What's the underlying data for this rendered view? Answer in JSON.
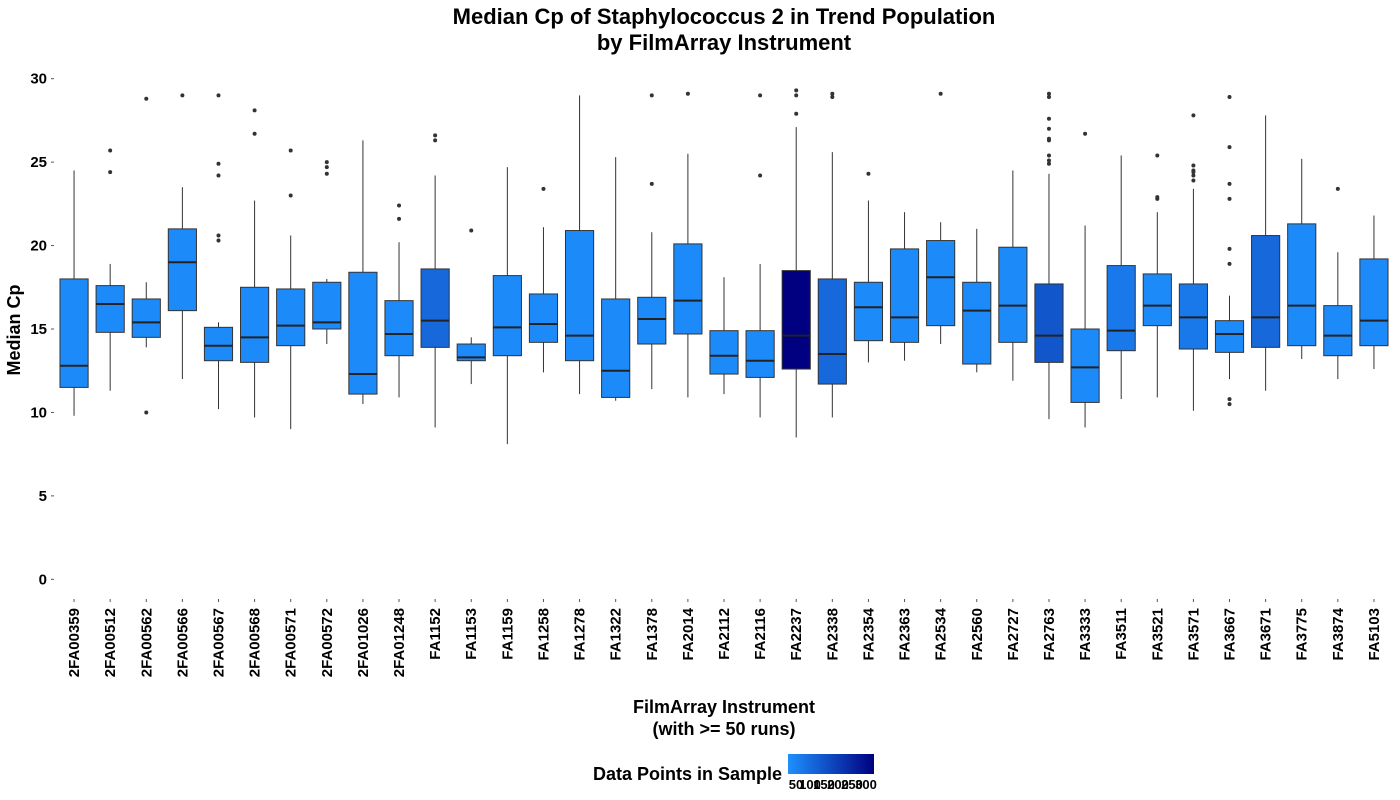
{
  "chart_data": {
    "type": "boxplot",
    "title": "Median Cp of Staphylococcus 2 in Trend Population",
    "subtitle": "by FilmArray Instrument",
    "xlabel": "FilmArray Instrument",
    "xlabel_sub": "(with >= 50 runs)",
    "ylabel": "Median Cp",
    "ylim": [
      -1,
      31
    ],
    "yticks": [
      0,
      5,
      10,
      15,
      20,
      25,
      30
    ],
    "grid": false,
    "legend": {
      "title": "Data Points in Sample",
      "placement": "bottom",
      "tick_labels": [
        "50",
        "100",
        "150",
        "200",
        "250",
        "300"
      ],
      "color_low": "#1E90FF",
      "color_high": "#000080"
    },
    "categories": [
      "2FA00359",
      "2FA00512",
      "2FA00562",
      "2FA00566",
      "2FA00567",
      "2FA00568",
      "2FA00571",
      "2FA00572",
      "2FA01026",
      "2FA01248",
      "FA1152",
      "FA1153",
      "FA1159",
      "FA1258",
      "FA1278",
      "FA1322",
      "FA1378",
      "FA2014",
      "FA2112",
      "FA2116",
      "FA2237",
      "FA2338",
      "FA2354",
      "FA2363",
      "FA2534",
      "FA2560",
      "FA2727",
      "FA2763",
      "FA3333",
      "FA3511",
      "FA3521",
      "FA3571",
      "FA3667",
      "FA3671",
      "FA3775",
      "FA3874",
      "FA5103"
    ],
    "boxes": [
      {
        "lower": 9.8,
        "q1": 11.5,
        "median": 12.8,
        "q3": 18.0,
        "upper": 24.5,
        "outliers": [],
        "n": 60
      },
      {
        "lower": 11.3,
        "q1": 14.8,
        "median": 16.5,
        "q3": 17.6,
        "upper": 18.9,
        "outliers": [
          24.4,
          25.7
        ],
        "n": 60
      },
      {
        "lower": 13.9,
        "q1": 14.5,
        "median": 15.4,
        "q3": 16.8,
        "upper": 17.8,
        "outliers": [
          10.0,
          28.8
        ],
        "n": 60
      },
      {
        "lower": 12.0,
        "q1": 16.1,
        "median": 19.0,
        "q3": 21.0,
        "upper": 23.5,
        "outliers": [
          29.0
        ],
        "n": 60
      },
      {
        "lower": 10.2,
        "q1": 13.1,
        "median": 14.0,
        "q3": 15.1,
        "upper": 15.4,
        "outliers": [
          20.3,
          20.6,
          24.2,
          24.9,
          29.0
        ],
        "n": 60
      },
      {
        "lower": 9.7,
        "q1": 13.0,
        "median": 14.5,
        "q3": 17.5,
        "upper": 22.7,
        "outliers": [
          26.7,
          28.1
        ],
        "n": 60
      },
      {
        "lower": 9.0,
        "q1": 14.0,
        "median": 15.2,
        "q3": 17.4,
        "upper": 20.6,
        "outliers": [
          23.0,
          25.7
        ],
        "n": 60
      },
      {
        "lower": 14.1,
        "q1": 15.0,
        "median": 15.4,
        "q3": 17.8,
        "upper": 18.0,
        "outliers": [
          24.3,
          24.7,
          25.0
        ],
        "n": 60
      },
      {
        "lower": 10.5,
        "q1": 11.1,
        "median": 12.3,
        "q3": 18.4,
        "upper": 26.3,
        "outliers": [],
        "n": 60
      },
      {
        "lower": 10.9,
        "q1": 13.4,
        "median": 14.7,
        "q3": 16.7,
        "upper": 20.2,
        "outliers": [
          21.6,
          22.4
        ],
        "n": 60
      },
      {
        "lower": 9.1,
        "q1": 13.9,
        "median": 15.5,
        "q3": 18.6,
        "upper": 24.2,
        "outliers": [
          26.3,
          26.6
        ],
        "n": 120
      },
      {
        "lower": 11.7,
        "q1": 13.1,
        "median": 13.3,
        "q3": 14.1,
        "upper": 14.5,
        "outliers": [
          20.9
        ],
        "n": 60
      },
      {
        "lower": 8.1,
        "q1": 13.4,
        "median": 15.1,
        "q3": 18.2,
        "upper": 24.7,
        "outliers": [],
        "n": 60
      },
      {
        "lower": 12.4,
        "q1": 14.2,
        "median": 15.3,
        "q3": 17.1,
        "upper": 21.1,
        "outliers": [
          23.4
        ],
        "n": 60
      },
      {
        "lower": 11.1,
        "q1": 13.1,
        "median": 14.6,
        "q3": 20.9,
        "upper": 29.0,
        "outliers": [],
        "n": 60
      },
      {
        "lower": 10.7,
        "q1": 10.9,
        "median": 12.5,
        "q3": 16.8,
        "upper": 25.3,
        "outliers": [],
        "n": 60
      },
      {
        "lower": 11.4,
        "q1": 14.1,
        "median": 15.6,
        "q3": 16.9,
        "upper": 20.8,
        "outliers": [
          23.7,
          29.0
        ],
        "n": 60
      },
      {
        "lower": 10.9,
        "q1": 14.7,
        "median": 16.7,
        "q3": 20.1,
        "upper": 25.5,
        "outliers": [
          29.1
        ],
        "n": 60
      },
      {
        "lower": 11.1,
        "q1": 12.3,
        "median": 13.4,
        "q3": 14.9,
        "upper": 18.1,
        "outliers": [],
        "n": 60
      },
      {
        "lower": 9.7,
        "q1": 12.1,
        "median": 13.1,
        "q3": 14.9,
        "upper": 18.9,
        "outliers": [
          24.2,
          29.0
        ],
        "n": 60
      },
      {
        "lower": 8.5,
        "q1": 12.6,
        "median": 14.6,
        "q3": 18.5,
        "upper": 27.1,
        "outliers": [
          27.9,
          29.0,
          29.3
        ],
        "n": 300
      },
      {
        "lower": 9.7,
        "q1": 11.7,
        "median": 13.5,
        "q3": 18.0,
        "upper": 25.6,
        "outliers": [
          28.9,
          29.1
        ],
        "n": 120
      },
      {
        "lower": 13.0,
        "q1": 14.3,
        "median": 16.3,
        "q3": 17.8,
        "upper": 22.7,
        "outliers": [
          24.3
        ],
        "n": 60
      },
      {
        "lower": 13.1,
        "q1": 14.2,
        "median": 15.7,
        "q3": 19.8,
        "upper": 22.0,
        "outliers": [],
        "n": 60
      },
      {
        "lower": 14.1,
        "q1": 15.2,
        "median": 18.1,
        "q3": 20.3,
        "upper": 21.4,
        "outliers": [
          29.1
        ],
        "n": 60
      },
      {
        "lower": 12.4,
        "q1": 12.9,
        "median": 16.1,
        "q3": 17.8,
        "upper": 21.0,
        "outliers": [],
        "n": 60
      },
      {
        "lower": 11.9,
        "q1": 14.2,
        "median": 16.4,
        "q3": 19.9,
        "upper": 24.5,
        "outliers": [],
        "n": 60
      },
      {
        "lower": 9.6,
        "q1": 13.0,
        "median": 14.6,
        "q3": 17.7,
        "upper": 24.3,
        "outliers": [
          24.9,
          25.1,
          25.4,
          26.3,
          26.4,
          27.0,
          27.6,
          28.9,
          29.1
        ],
        "n": 150
      },
      {
        "lower": 9.1,
        "q1": 10.6,
        "median": 12.7,
        "q3": 15.0,
        "upper": 21.2,
        "outliers": [
          26.7
        ],
        "n": 60
      },
      {
        "lower": 10.8,
        "q1": 13.7,
        "median": 14.9,
        "q3": 18.8,
        "upper": 25.4,
        "outliers": [],
        "n": 90
      },
      {
        "lower": 10.9,
        "q1": 15.2,
        "median": 16.4,
        "q3": 18.3,
        "upper": 22.0,
        "outliers": [
          22.8,
          22.9,
          25.4
        ],
        "n": 60
      },
      {
        "lower": 10.1,
        "q1": 13.8,
        "median": 15.7,
        "q3": 17.7,
        "upper": 23.4,
        "outliers": [
          23.9,
          24.2,
          24.4,
          24.5,
          24.8,
          27.8
        ],
        "n": 90
      },
      {
        "lower": 12.0,
        "q1": 13.6,
        "median": 14.7,
        "q3": 15.5,
        "upper": 17.0,
        "outliers": [
          10.5,
          10.8,
          18.9,
          19.8,
          22.8,
          23.7,
          25.9,
          28.9
        ],
        "n": 60
      },
      {
        "lower": 11.3,
        "q1": 13.9,
        "median": 15.7,
        "q3": 20.6,
        "upper": 27.8,
        "outliers": [],
        "n": 120
      },
      {
        "lower": 13.2,
        "q1": 14.0,
        "median": 16.4,
        "q3": 21.3,
        "upper": 25.2,
        "outliers": [],
        "n": 60
      },
      {
        "lower": 12.0,
        "q1": 13.4,
        "median": 14.6,
        "q3": 16.4,
        "upper": 19.6,
        "outliers": [
          23.4
        ],
        "n": 60
      },
      {
        "lower": 12.6,
        "q1": 14.0,
        "median": 15.5,
        "q3": 19.2,
        "upper": 21.8,
        "outliers": [],
        "n": 60
      }
    ]
  }
}
